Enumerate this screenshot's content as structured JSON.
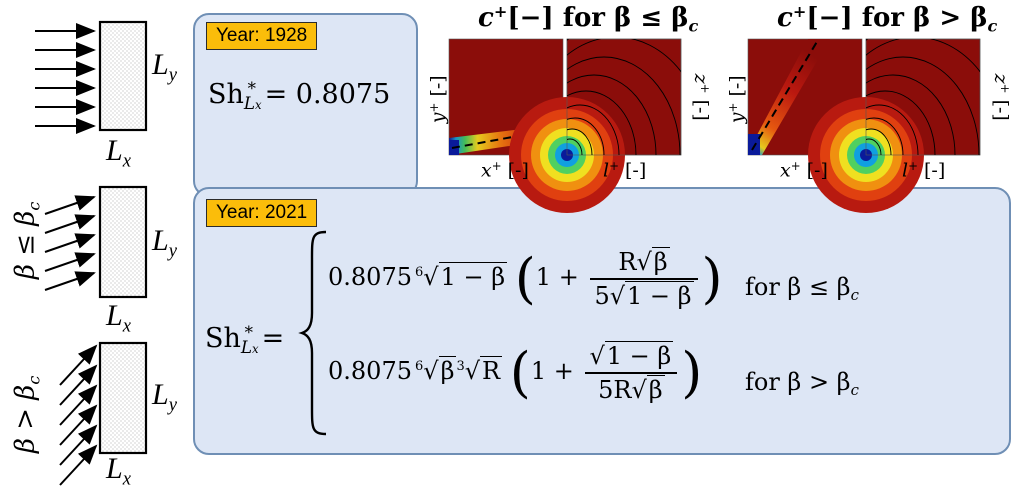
{
  "top_panel": {
    "badge": "Year: 1928",
    "sh_lhs": "Sh",
    "sh_sub": "L",
    "sh_subsub": "x",
    "sh_star": "*",
    "sh_value": "= 0.8075"
  },
  "bottom_panel": {
    "badge": "Year: 2021",
    "sh_lhs": "Sh",
    "sh_sub": "L",
    "sh_subsub": "x",
    "sh_star": "*",
    "sh_eq": "=",
    "case1": {
      "coef": "0.8075",
      "root_index": "6",
      "radicand": "1 − β",
      "one_plus": "1 +",
      "num_R": "R",
      "num_radicand": "β",
      "den_coef": "5",
      "den_radicand": "1 − β",
      "condition": "for β ≤ β",
      "condition_sub": "c"
    },
    "case2": {
      "coef": "0.8075",
      "root_index_a": "6",
      "radicand_a": "β",
      "root_index_b": "3",
      "radicand_b": "R",
      "one_plus": "1 +",
      "num_radicand": "1 − β",
      "den_coef": "5R",
      "den_radicand": "β",
      "condition": "for β > β",
      "condition_sub": "c"
    }
  },
  "schematics": {
    "rect_label_y": "L",
    "rect_label_y_sub": "y",
    "rect_label_x": "L",
    "rect_label_x_sub": "x",
    "beta_le": "β ≤ β",
    "beta_le_sub": "c",
    "beta_gt": "β > β",
    "beta_gt_sub": "c"
  },
  "plots": {
    "title_left": "c",
    "title_left_sup": "+",
    "title_left_rest": "[−] for β ≤ β",
    "title_left_sub": "c",
    "title_right": "c",
    "title_right_sup": "+",
    "title_right_rest": "[−] for β > β",
    "title_right_sub": "c",
    "xlabel": "x",
    "xlabel_sup": "+",
    "xlabel_unit": "[-]",
    "llabel": "l",
    "llabel_sup": "+",
    "llabel_unit": "[-]",
    "ylabel": "y",
    "ylabel_sup": "+",
    "ylabel_unit": "[-]",
    "zlabel": "z",
    "zlabel_sup": "+",
    "zlabel_unit": "[-]"
  },
  "colors": {
    "panel_fill": "#dde6f5",
    "panel_border": "#6f8fb5",
    "badge_fill": "#fbbd0a",
    "heatmap_base": "#8b0d0a"
  }
}
